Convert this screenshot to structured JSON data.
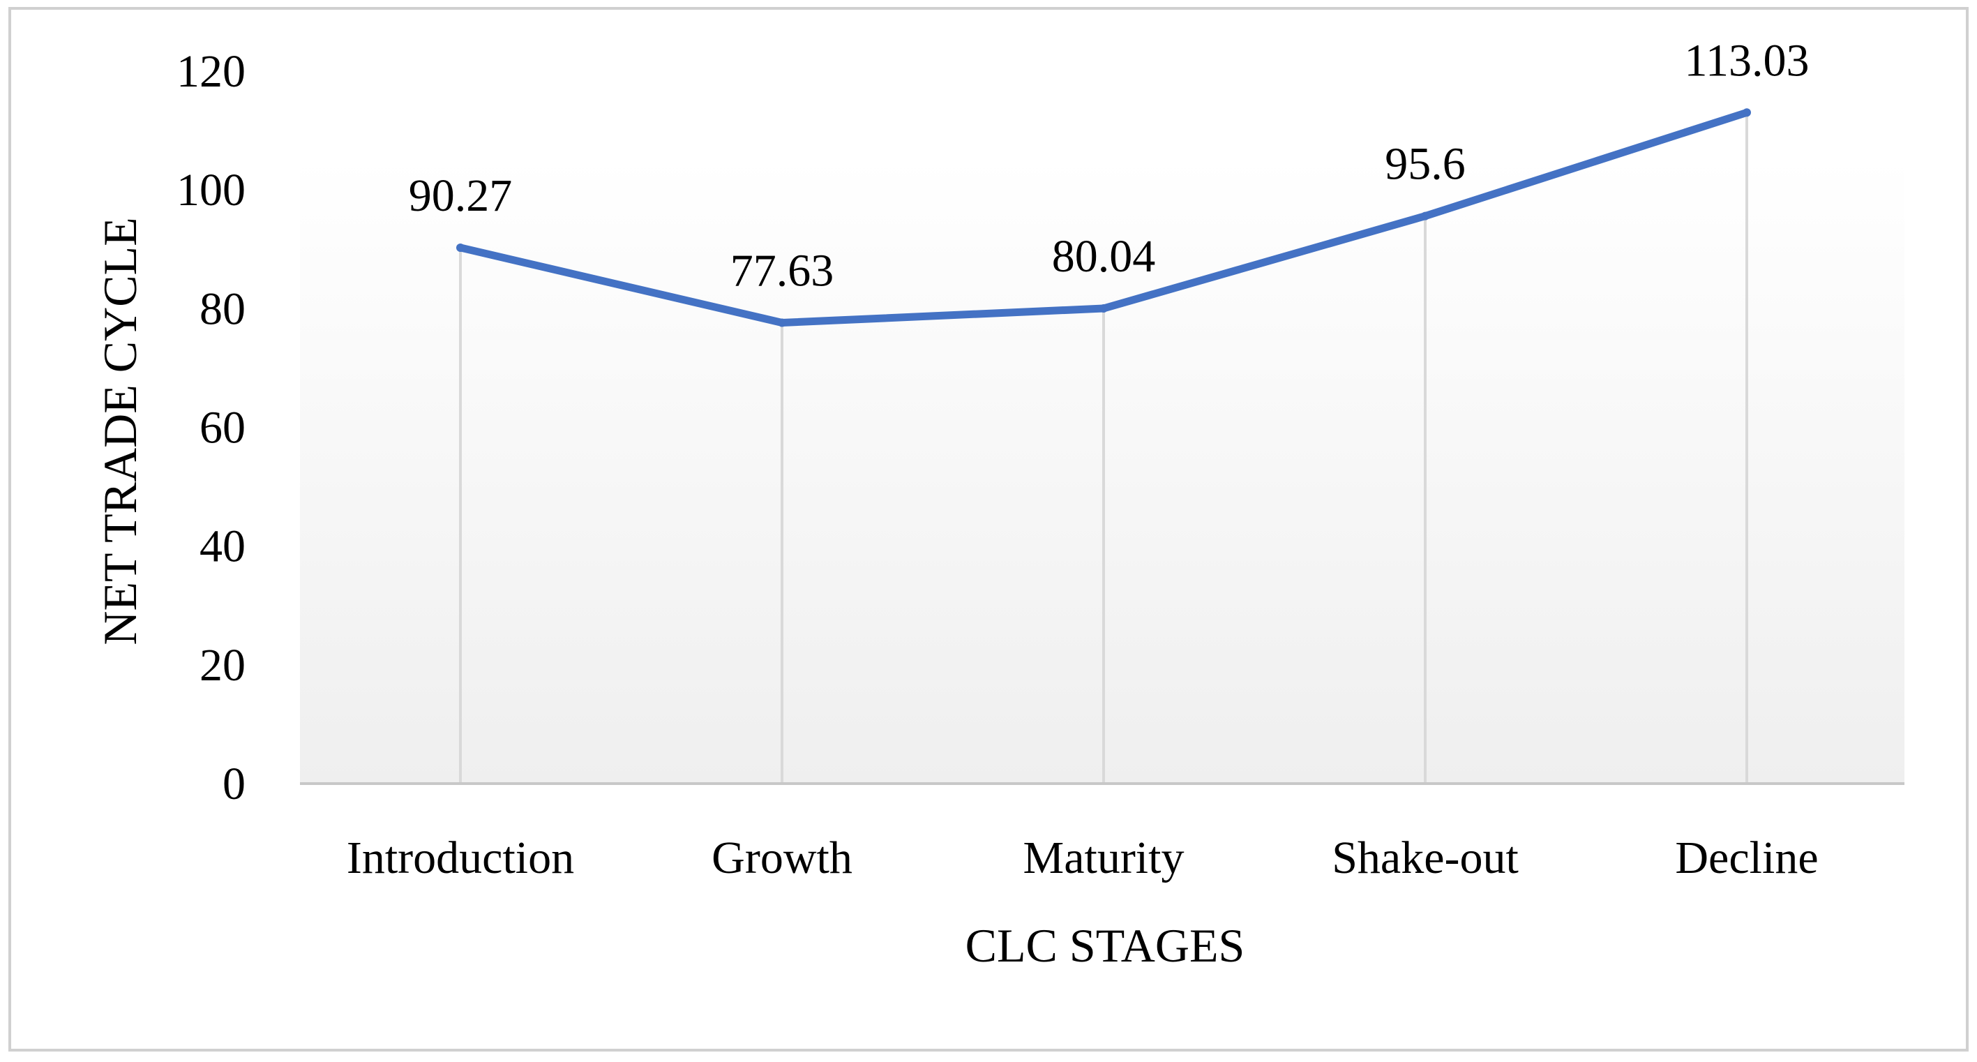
{
  "chart_data": {
    "type": "line",
    "categories": [
      "Introduction",
      "Growth",
      "Maturity",
      "Shake-out",
      "Decline"
    ],
    "series": [
      {
        "name": "Net Trade Cycle",
        "values": [
          90.27,
          77.63,
          80.04,
          95.6,
          113.03
        ],
        "labels": [
          "90.27",
          "77.63",
          "80.04",
          "95.6",
          "113.03"
        ],
        "color": "#4472C4"
      }
    ],
    "title": "",
    "xlabel": "CLC STAGES",
    "ylabel": "NET TRADE CYCLE",
    "ylim": [
      0,
      120
    ],
    "yticks": [
      "0",
      "20",
      "40",
      "60",
      "80",
      "100",
      "120"
    ],
    "grid": "vertical drop lines",
    "legend": "none"
  },
  "colors": {
    "line": "#4472C4",
    "drop_lines": "#d9d9d9",
    "axis_line": "#c8c8c8",
    "plot_fill_top": "#ffffff",
    "plot_fill_bottom": "#efefef",
    "border": "#d0d0d0"
  }
}
